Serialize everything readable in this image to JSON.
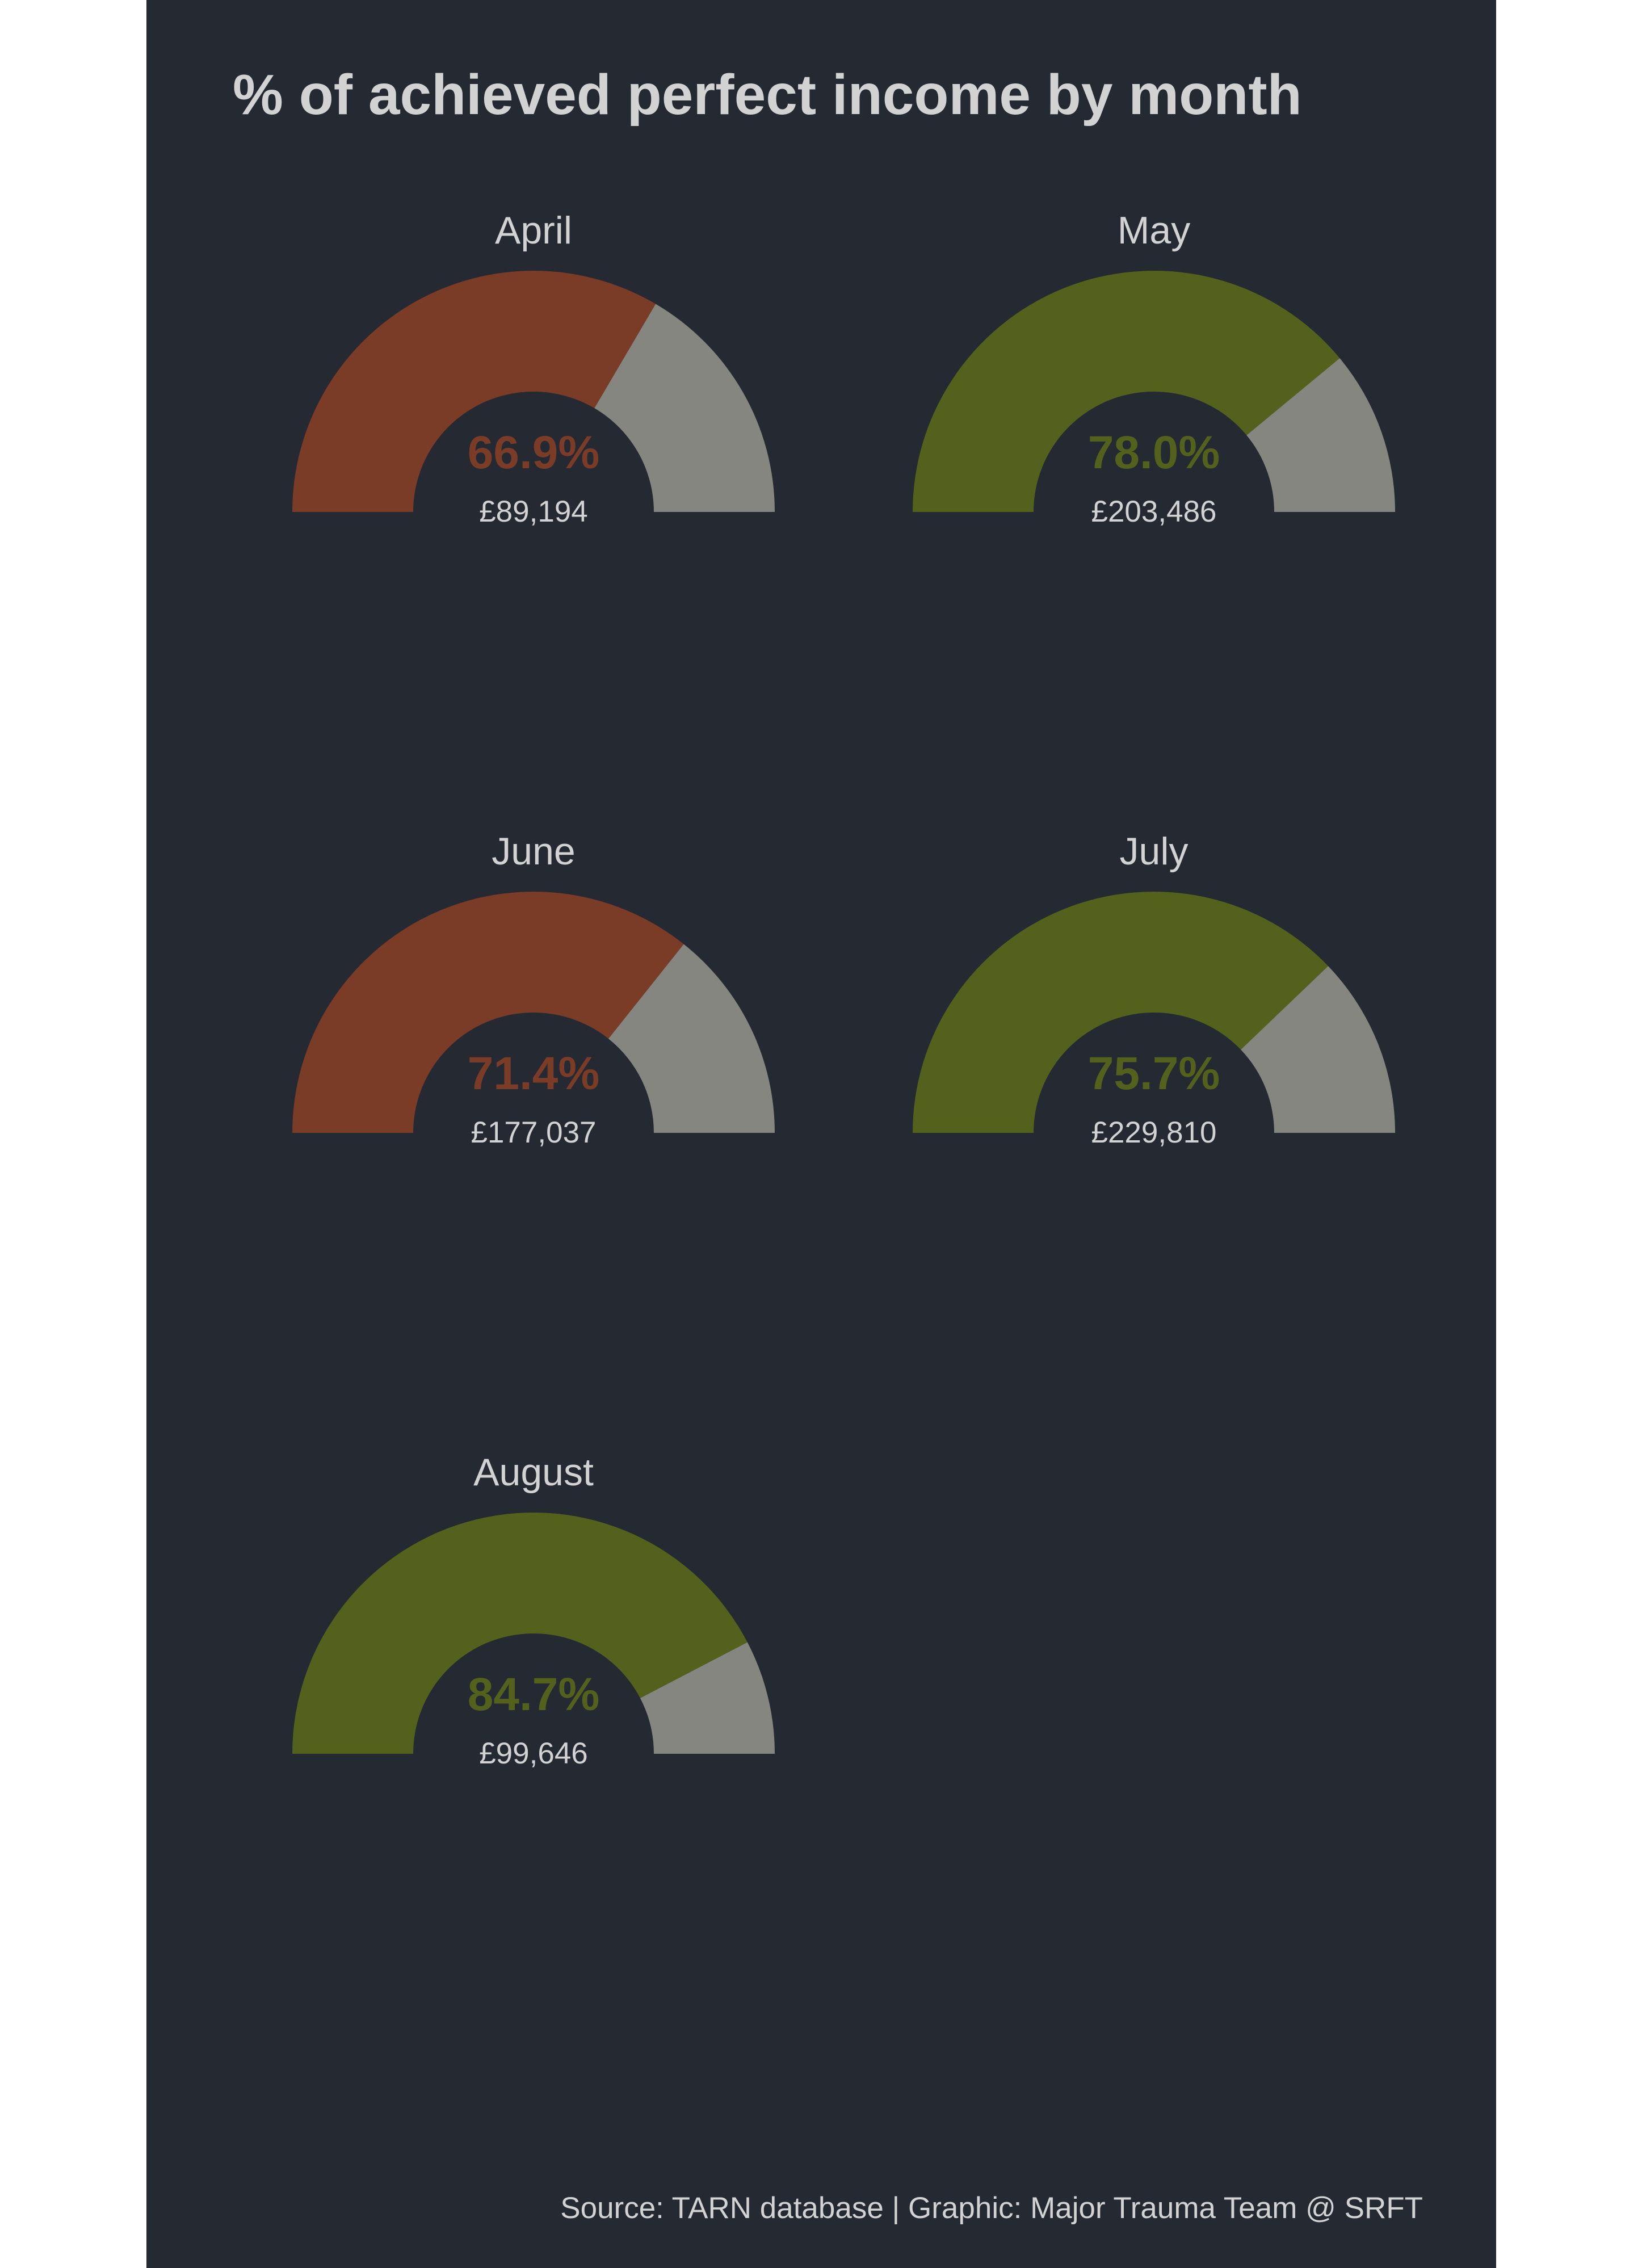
{
  "title": "% of achieved perfect income by month",
  "caption": "Source: TARN database | Graphic: Major Trauma Team @ SRFT",
  "colors": {
    "background": "#252932",
    "text": "#d2d2d2",
    "below_target": "#7a3b27",
    "above_target": "#53611c",
    "remainder": "#85867f"
  },
  "chart_data": {
    "type": "gauge",
    "title": "% of achieved perfect income by month",
    "value_range": [
      0,
      100
    ],
    "unit": "%",
    "series": [
      {
        "month": "April",
        "percent": 66.9,
        "percent_label": "66.9%",
        "income_label": "£89,194",
        "status": "below_target"
      },
      {
        "month": "May",
        "percent": 78.0,
        "percent_label": "78.0%",
        "income_label": "£203,486",
        "status": "above_target"
      },
      {
        "month": "June",
        "percent": 71.4,
        "percent_label": "71.4%",
        "income_label": "£177,037",
        "status": "below_target"
      },
      {
        "month": "July",
        "percent": 75.7,
        "percent_label": "75.7%",
        "income_label": "£229,810",
        "status": "above_target"
      },
      {
        "month": "August",
        "percent": 84.7,
        "percent_label": "84.7%",
        "income_label": "£99,646",
        "status": "above_target"
      }
    ]
  }
}
